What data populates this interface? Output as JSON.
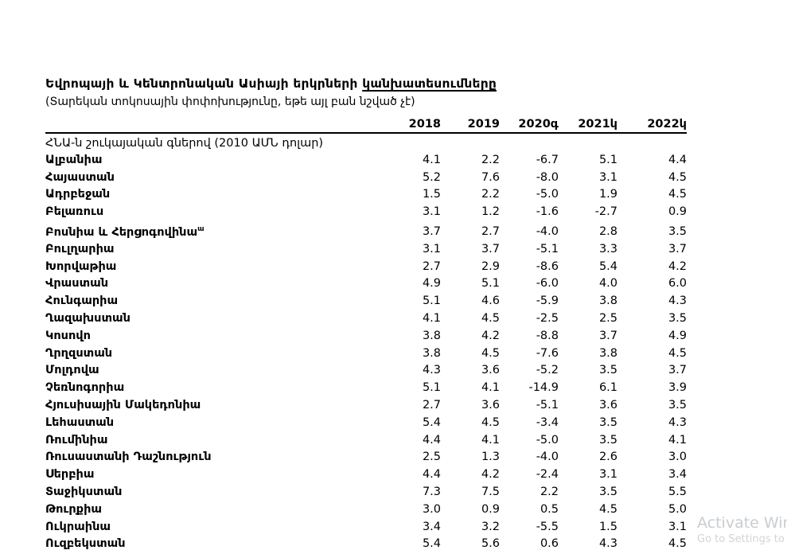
{
  "header": {
    "title_prefix": "Եվրոպայի և Կենտրոնական Ասիայի երկրների ",
    "title_underlined": "կանխատեսումները",
    "subtitle": "(Տարեկան տոկոսային փոփոխությունը, եթե այլ բան նշված չէ)"
  },
  "table": {
    "year_headers": [
      "2018",
      "2019",
      "2020գ",
      "2021կ",
      "2022կ"
    ],
    "section_label": "ՀՆԱ-ն շուկայական գներով (2010 ԱՄՆ դոլար)",
    "rows": [
      {
        "country": "Ալբանիա",
        "values": [
          "4.1",
          "2.2",
          "-6.7",
          "5.1",
          "4.4"
        ]
      },
      {
        "country": "Հայաստան",
        "values": [
          "5.2",
          "7.6",
          "-8.0",
          "3.1",
          "4.5"
        ]
      },
      {
        "country": "Ադրբեջան",
        "values": [
          "1.5",
          "2.2",
          "-5.0",
          "1.9",
          "4.5"
        ]
      },
      {
        "country": "Բելառուս",
        "values": [
          "3.1",
          "1.2",
          "-1.6",
          "-2.7",
          "0.9"
        ]
      },
      {
        "country": "Բոսնիա և Հերցոգովինա",
        "sup": "ա",
        "spacer_before": true,
        "values": [
          "3.7",
          "2.7",
          "-4.0",
          "2.8",
          "3.5"
        ]
      },
      {
        "country": "Բուլղարիա",
        "values": [
          "3.1",
          "3.7",
          "-5.1",
          "3.3",
          "3.7"
        ]
      },
      {
        "country": "Խորվաթիա",
        "values": [
          "2.7",
          "2.9",
          "-8.6",
          "5.4",
          "4.2"
        ]
      },
      {
        "country": "Վրաստան",
        "values": [
          "4.9",
          "5.1",
          "-6.0",
          "4.0",
          "6.0"
        ]
      },
      {
        "country": "Հունգարիա",
        "values": [
          "5.1",
          "4.6",
          "-5.9",
          "3.8",
          "4.3"
        ]
      },
      {
        "country": "Ղազախստան",
        "values": [
          "4.1",
          "4.5",
          "-2.5",
          "2.5",
          "3.5"
        ]
      },
      {
        "country": "Կոսովո",
        "values": [
          "3.8",
          "4.2",
          "-8.8",
          "3.7",
          "4.9"
        ]
      },
      {
        "country": "Ղրղզստան",
        "values": [
          "3.8",
          "4.5",
          "-7.6",
          "3.8",
          "4.5"
        ]
      },
      {
        "country": "Մոլդովա",
        "values": [
          "4.3",
          "3.6",
          "-5.2",
          "3.5",
          "3.7"
        ]
      },
      {
        "country": "Չեռնոգորիա",
        "values": [
          "5.1",
          "4.1",
          "-14.9",
          "6.1",
          "3.9"
        ]
      },
      {
        "country": "Հյուսիսային Մակեդոնիա",
        "values": [
          "2.7",
          "3.6",
          "-5.1",
          "3.6",
          "3.5"
        ]
      },
      {
        "country": "Լեհաստան",
        "values": [
          "5.4",
          "4.5",
          "-3.4",
          "3.5",
          "4.3"
        ]
      },
      {
        "country": "Ռումինիա",
        "values": [
          "4.4",
          "4.1",
          "-5.0",
          "3.5",
          "4.1"
        ]
      },
      {
        "country": "Ռուսաստանի Դաշնություն",
        "values": [
          "2.5",
          "1.3",
          "-4.0",
          "2.6",
          "3.0"
        ]
      },
      {
        "country": "Սերբիա",
        "values": [
          "4.4",
          "4.2",
          "-2.4",
          "3.1",
          "3.4"
        ]
      },
      {
        "country": "Տաջիկստան",
        "values": [
          "7.3",
          "7.5",
          "2.2",
          "3.5",
          "5.5"
        ]
      },
      {
        "country": "Թուրքիա",
        "values": [
          "3.0",
          "0.9",
          "0.5",
          "4.5",
          "5.0"
        ]
      },
      {
        "country": "Ուկրաինա",
        "values": [
          "3.4",
          "3.2",
          "-5.5",
          "1.5",
          "3.1"
        ]
      },
      {
        "country": "Ուզբեկստան",
        "values": [
          "5.4",
          "5.6",
          "0.6",
          "4.3",
          "4.5"
        ]
      }
    ]
  },
  "watermark": {
    "line1": "Activate Win",
    "line2": "Go to Settings to"
  }
}
